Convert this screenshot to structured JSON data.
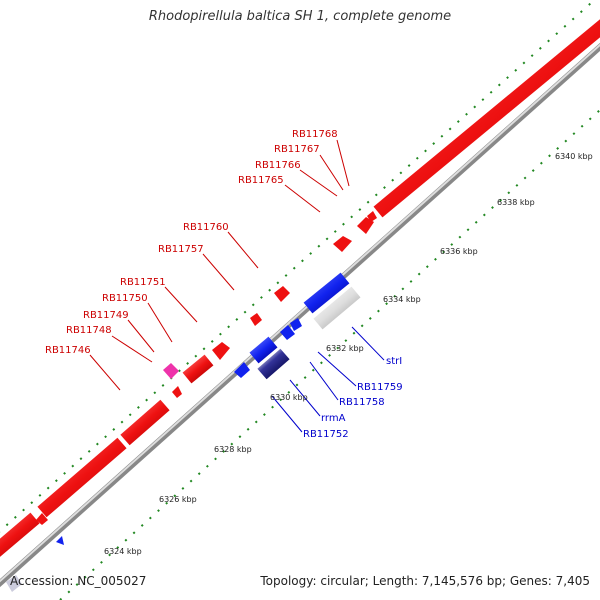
{
  "title": "Rhodopirellula baltica SH 1, complete genome",
  "footer": {
    "accession": "Accession: NC_005027",
    "summary": "Topology: circular; Length: 7,145,576 bp; Genes: 7,405"
  },
  "colors": {
    "forward_gene": "#ee1111",
    "reverse_gene": "#1122ee",
    "rna_gene": "#dddddd",
    "highlight_gene": "#ee33aa",
    "backbone": "#999999",
    "tick": "#228822"
  },
  "scale_ticks": [
    {
      "label": "6324 kbp"
    },
    {
      "label": "6326 kbp"
    },
    {
      "label": "6328 kbp"
    },
    {
      "label": "6330 kbp"
    },
    {
      "label": "6332 kbp"
    },
    {
      "label": "6334 kbp"
    },
    {
      "label": "6336 kbp"
    },
    {
      "label": "6338 kbp"
    },
    {
      "label": "6340 kbp"
    }
  ],
  "forward_labels": [
    "RB11768",
    "RB11767",
    "RB11766",
    "RB11765",
    "RB11760",
    "RB11757",
    "RB11751",
    "RB11750",
    "RB11749",
    "RB11748",
    "RB11746"
  ],
  "reverse_labels": [
    "strI",
    "RB11759",
    "RB11758",
    "rrmA",
    "RB11752"
  ]
}
